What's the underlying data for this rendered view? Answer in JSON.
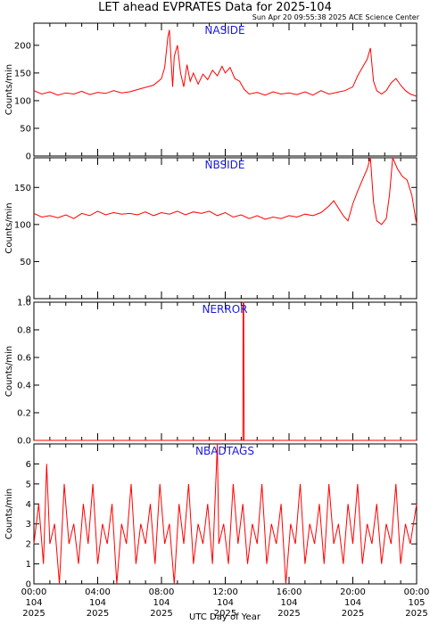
{
  "figure": {
    "title": "LET ahead EVPRATES Data for 2025-104",
    "subtitle": "Sun Apr 20 09:55:38 2025 ACE Science Center",
    "xaxis_title": "UTC Day of Year"
  },
  "chart_data": [
    {
      "type": "line",
      "title": "NASIDE",
      "ylabel": "Counts/min",
      "ylim": [
        0,
        240
      ],
      "yticks": [
        0,
        50,
        100,
        150,
        200
      ],
      "xlim": [
        0,
        24
      ],
      "series": [
        {
          "values": [
            [
              0.0,
              118
            ],
            [
              0.5,
              112
            ],
            [
              1.0,
              116
            ],
            [
              1.5,
              110
            ],
            [
              2.0,
              114
            ],
            [
              2.5,
              112
            ],
            [
              3.0,
              117
            ],
            [
              3.5,
              111
            ],
            [
              4.0,
              115
            ],
            [
              4.5,
              113
            ],
            [
              5.0,
              118
            ],
            [
              5.5,
              114
            ],
            [
              6.0,
              116
            ],
            [
              6.5,
              120
            ],
            [
              7.0,
              124
            ],
            [
              7.5,
              128
            ],
            [
              7.8,
              135
            ],
            [
              8.0,
              140
            ],
            [
              8.2,
              160
            ],
            [
              8.4,
              215
            ],
            [
              8.5,
              228
            ],
            [
              8.6,
              175
            ],
            [
              8.7,
              125
            ],
            [
              8.8,
              180
            ],
            [
              9.0,
              200
            ],
            [
              9.2,
              150
            ],
            [
              9.4,
              125
            ],
            [
              9.6,
              165
            ],
            [
              9.8,
              135
            ],
            [
              10.0,
              150
            ],
            [
              10.3,
              130
            ],
            [
              10.6,
              148
            ],
            [
              10.9,
              138
            ],
            [
              11.2,
              155
            ],
            [
              11.5,
              145
            ],
            [
              11.8,
              162
            ],
            [
              12.0,
              150
            ],
            [
              12.3,
              160
            ],
            [
              12.6,
              140
            ],
            [
              12.9,
              135
            ],
            [
              13.2,
              120
            ],
            [
              13.5,
              112
            ],
            [
              14.0,
              115
            ],
            [
              14.5,
              110
            ],
            [
              15.0,
              116
            ],
            [
              15.5,
              112
            ],
            [
              16.0,
              114
            ],
            [
              16.5,
              111
            ],
            [
              17.0,
              116
            ],
            [
              17.5,
              110
            ],
            [
              18.0,
              118
            ],
            [
              18.5,
              112
            ],
            [
              19.0,
              115
            ],
            [
              19.5,
              118
            ],
            [
              20.0,
              125
            ],
            [
              20.3,
              145
            ],
            [
              20.6,
              160
            ],
            [
              20.9,
              175
            ],
            [
              21.1,
              195
            ],
            [
              21.3,
              135
            ],
            [
              21.5,
              118
            ],
            [
              21.8,
              112
            ],
            [
              22.1,
              118
            ],
            [
              22.4,
              132
            ],
            [
              22.7,
              140
            ],
            [
              23.0,
              128
            ],
            [
              23.3,
              118
            ],
            [
              23.6,
              112
            ],
            [
              24.0,
              108
            ]
          ]
        }
      ]
    },
    {
      "type": "line",
      "title": "NBSIDE",
      "ylabel": "Counts/min",
      "ylim": [
        0,
        190
      ],
      "yticks": [
        0,
        50,
        100,
        150
      ],
      "xlim": [
        0,
        24
      ],
      "series": [
        {
          "values": [
            [
              0.0,
              115
            ],
            [
              0.5,
              110
            ],
            [
              1.0,
              112
            ],
            [
              1.5,
              109
            ],
            [
              2.0,
              113
            ],
            [
              2.5,
              108
            ],
            [
              3.0,
              115
            ],
            [
              3.5,
              112
            ],
            [
              4.0,
              118
            ],
            [
              4.5,
              113
            ],
            [
              5.0,
              116
            ],
            [
              5.5,
              114
            ],
            [
              6.0,
              115
            ],
            [
              6.5,
              113
            ],
            [
              7.0,
              117
            ],
            [
              7.5,
              112
            ],
            [
              8.0,
              116
            ],
            [
              8.5,
              114
            ],
            [
              9.0,
              118
            ],
            [
              9.5,
              113
            ],
            [
              10.0,
              117
            ],
            [
              10.5,
              115
            ],
            [
              11.0,
              118
            ],
            [
              11.5,
              112
            ],
            [
              12.0,
              116
            ],
            [
              12.5,
              110
            ],
            [
              13.0,
              113
            ],
            [
              13.5,
              108
            ],
            [
              14.0,
              112
            ],
            [
              14.5,
              107
            ],
            [
              15.0,
              110
            ],
            [
              15.5,
              108
            ],
            [
              16.0,
              112
            ],
            [
              16.5,
              110
            ],
            [
              17.0,
              114
            ],
            [
              17.5,
              112
            ],
            [
              18.0,
              116
            ],
            [
              18.5,
              125
            ],
            [
              18.8,
              132
            ],
            [
              19.1,
              122
            ],
            [
              19.4,
              112
            ],
            [
              19.7,
              105
            ],
            [
              20.0,
              128
            ],
            [
              20.3,
              145
            ],
            [
              20.6,
              160
            ],
            [
              20.9,
              175
            ],
            [
              21.1,
              190
            ],
            [
              21.3,
              130
            ],
            [
              21.5,
              105
            ],
            [
              21.8,
              100
            ],
            [
              22.1,
              108
            ],
            [
              22.3,
              140
            ],
            [
              22.5,
              190
            ],
            [
              22.8,
              175
            ],
            [
              23.1,
              165
            ],
            [
              23.4,
              160
            ],
            [
              23.7,
              140
            ],
            [
              24.0,
              100
            ]
          ]
        }
      ]
    },
    {
      "type": "line",
      "title": "NERROR",
      "ylabel": "Counts/min",
      "ylim": [
        0,
        1.0
      ],
      "yticks": [
        0.0,
        0.2,
        0.4,
        0.6,
        0.8,
        1.0
      ],
      "ytick_labels": [
        "0.0",
        "0.2",
        "0.4",
        "0.6",
        "0.8",
        "1.0"
      ],
      "xlim": [
        0,
        24
      ],
      "series": [
        {
          "values": [
            [
              0.0,
              0
            ],
            [
              13.1,
              0
            ],
            [
              13.12,
              1
            ],
            [
              13.16,
              1
            ],
            [
              13.18,
              0
            ],
            [
              24.0,
              0
            ]
          ]
        }
      ]
    },
    {
      "type": "line",
      "title": "NBADTAGS",
      "ylabel": "Counts/min",
      "ylim": [
        0,
        7
      ],
      "yticks": [
        0,
        1,
        2,
        3,
        4,
        5,
        6
      ],
      "xlim": [
        0,
        24
      ],
      "series": [
        {
          "values": [
            [
              0.0,
              2
            ],
            [
              0.3,
              4
            ],
            [
              0.6,
              1
            ],
            [
              0.8,
              6
            ],
            [
              1.0,
              2
            ],
            [
              1.3,
              3
            ],
            [
              1.6,
              0
            ],
            [
              1.9,
              5
            ],
            [
              2.2,
              2
            ],
            [
              2.5,
              3
            ],
            [
              2.8,
              1
            ],
            [
              3.1,
              4
            ],
            [
              3.4,
              2
            ],
            [
              3.7,
              5
            ],
            [
              4.0,
              1
            ],
            [
              4.3,
              3
            ],
            [
              4.6,
              2
            ],
            [
              4.9,
              4
            ],
            [
              5.2,
              0
            ],
            [
              5.5,
              3
            ],
            [
              5.8,
              2
            ],
            [
              6.1,
              5
            ],
            [
              6.4,
              1
            ],
            [
              6.7,
              3
            ],
            [
              7.0,
              2
            ],
            [
              7.3,
              4
            ],
            [
              7.6,
              1
            ],
            [
              7.9,
              5
            ],
            [
              8.2,
              2
            ],
            [
              8.5,
              3
            ],
            [
              8.8,
              0
            ],
            [
              9.1,
              4
            ],
            [
              9.4,
              2
            ],
            [
              9.7,
              5
            ],
            [
              10.0,
              1
            ],
            [
              10.3,
              3
            ],
            [
              10.6,
              2
            ],
            [
              10.9,
              4
            ],
            [
              11.2,
              1
            ],
            [
              11.5,
              7
            ],
            [
              11.6,
              2
            ],
            [
              11.9,
              3
            ],
            [
              12.2,
              1
            ],
            [
              12.5,
              5
            ],
            [
              12.8,
              2
            ],
            [
              13.1,
              4
            ],
            [
              13.4,
              1
            ],
            [
              13.7,
              3
            ],
            [
              14.0,
              2
            ],
            [
              14.3,
              5
            ],
            [
              14.6,
              1
            ],
            [
              14.9,
              3
            ],
            [
              15.2,
              2
            ],
            [
              15.5,
              4
            ],
            [
              15.8,
              0
            ],
            [
              16.1,
              3
            ],
            [
              16.4,
              2
            ],
            [
              16.7,
              5
            ],
            [
              17.0,
              1
            ],
            [
              17.3,
              3
            ],
            [
              17.6,
              2
            ],
            [
              17.9,
              4
            ],
            [
              18.2,
              1
            ],
            [
              18.5,
              5
            ],
            [
              18.8,
              2
            ],
            [
              19.1,
              3
            ],
            [
              19.4,
              1
            ],
            [
              19.7,
              4
            ],
            [
              20.0,
              2
            ],
            [
              20.3,
              5
            ],
            [
              20.6,
              1
            ],
            [
              20.9,
              3
            ],
            [
              21.2,
              2
            ],
            [
              21.5,
              4
            ],
            [
              21.8,
              1
            ],
            [
              22.1,
              3
            ],
            [
              22.4,
              2
            ],
            [
              22.7,
              5
            ],
            [
              23.0,
              1
            ],
            [
              23.3,
              3
            ],
            [
              23.6,
              2
            ],
            [
              24.0,
              4
            ]
          ]
        }
      ]
    }
  ],
  "x_ticks": [
    {
      "time": "00:00",
      "day": "104",
      "year": "2025"
    },
    {
      "time": "04:00",
      "day": "104",
      "year": "2025"
    },
    {
      "time": "08:00",
      "day": "104",
      "year": "2025"
    },
    {
      "time": "12:00",
      "day": "104",
      "year": "2025"
    },
    {
      "time": "16:00",
      "day": "104",
      "year": "2025"
    },
    {
      "time": "20:00",
      "day": "104",
      "year": "2025"
    },
    {
      "time": "00:00",
      "day": "105",
      "year": "2025"
    }
  ],
  "colors": {
    "series": "#ff0000",
    "panel_title": "#1a1adb",
    "axes": "#000000"
  }
}
